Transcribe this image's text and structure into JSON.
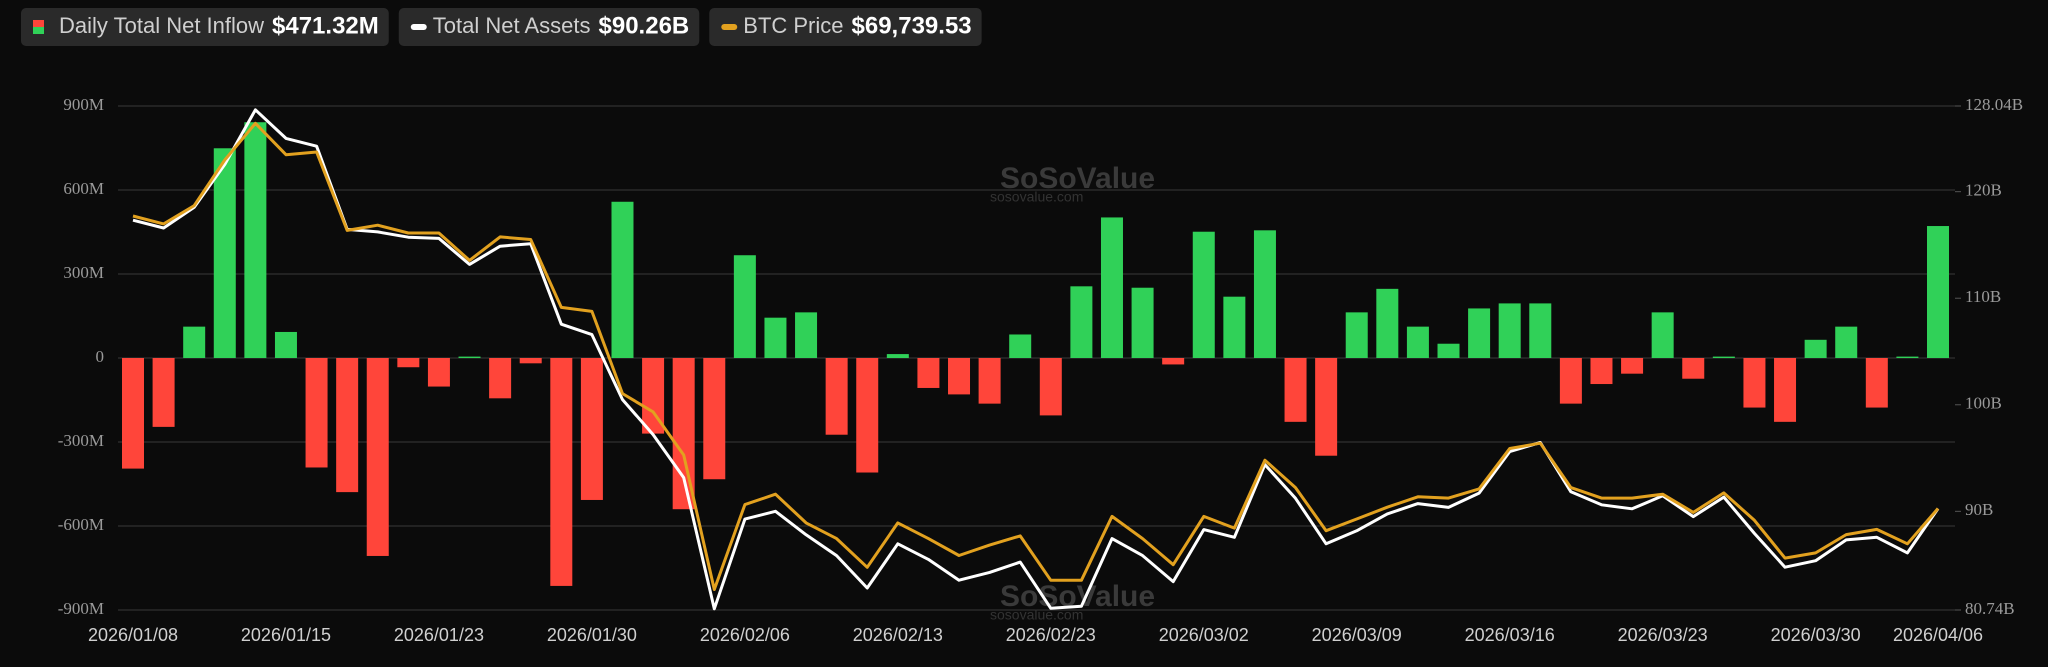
{
  "chart_data": {
    "type": "combo",
    "watermark": "SoSoValue",
    "watermark_url": "sosovalue.com",
    "categories": [
      "2026/01/08",
      null,
      null,
      null,
      null,
      "2026/01/15",
      null,
      null,
      null,
      null,
      "2026/01/23",
      null,
      null,
      null,
      null,
      "2026/01/30",
      null,
      null,
      null,
      null,
      "2026/02/06",
      null,
      null,
      null,
      null,
      "2026/02/13",
      null,
      null,
      null,
      null,
      "2026/02/23",
      null,
      null,
      null,
      null,
      "2026/03/02",
      null,
      null,
      null,
      null,
      "2026/03/09",
      null,
      null,
      null,
      null,
      "2026/03/16",
      null,
      null,
      null,
      null,
      "2026/03/23",
      null,
      null,
      null,
      null,
      "2026/03/30",
      null,
      null,
      null,
      "2026/04/06"
    ],
    "ylim": [
      -900,
      900
    ],
    "yticks": [
      {
        "value": -900,
        "label": "-900M"
      },
      {
        "value": -600,
        "label": "-600M"
      },
      {
        "value": -300,
        "label": "-300M"
      },
      0,
      {
        "value": 300,
        "label": "300M"
      },
      {
        "value": 600,
        "label": "600M"
      },
      {
        "value": 900,
        "label": "900M"
      }
    ],
    "y2lim": [
      80.74,
      128.04
    ],
    "y2ticks": [
      {
        "value": 80.74,
        "label": "80.74B"
      },
      {
        "value": 90,
        "label": "90B"
      },
      {
        "value": 100,
        "label": "100B"
      },
      {
        "value": 110,
        "label": "110B"
      },
      {
        "value": 120,
        "label": "120B"
      },
      {
        "value": 128.04,
        "label": "128.04B"
      }
    ],
    "y3lim": [
      62381,
      98926
    ],
    "grid": true,
    "series": [
      {
        "name": "Daily Total Net Inflow",
        "latest_label": "$471.32M",
        "type": "bar",
        "color_positive": "#30d158",
        "color_negative": "#ff453a",
        "values": [
          -395,
          -246,
          112,
          749,
          842,
          93,
          -391,
          -479,
          -707,
          -33,
          -102,
          5,
          -144,
          -19,
          -814,
          -507,
          558,
          -270,
          -540,
          -433,
          367,
          144,
          163,
          -274,
          -409,
          14,
          -107,
          -130,
          -163,
          84,
          -205,
          256,
          502,
          251,
          -23,
          451,
          219,
          456,
          -228,
          -349,
          163,
          247,
          112,
          51,
          177,
          195,
          195,
          -163,
          -93,
          -56,
          163,
          -74,
          5,
          -177,
          -228,
          65,
          112,
          -177,
          5,
          471.32
        ]
      },
      {
        "name": "Total Net Assets",
        "latest_label": "$90.26B",
        "type": "line",
        "axis": "y2",
        "color": "#ffffff",
        "values": [
          117.32,
          116.59,
          118.54,
          122.56,
          127.68,
          125.0,
          124.27,
          116.46,
          116.22,
          115.73,
          115.61,
          113.17,
          114.88,
          115.12,
          107.56,
          106.59,
          100.49,
          97.2,
          93.17,
          80.85,
          89.27,
          90.0,
          87.8,
          85.85,
          82.8,
          86.95,
          85.49,
          83.54,
          84.27,
          85.24,
          80.9,
          81.1,
          87.44,
          85.85,
          83.41,
          88.29,
          87.56,
          94.39,
          91.22,
          86.95,
          88.17,
          89.76,
          90.73,
          90.37,
          91.71,
          95.61,
          96.46,
          91.83,
          90.61,
          90.24,
          91.46,
          89.51,
          91.34,
          87.93,
          84.76,
          85.37,
          87.32,
          87.56,
          86.1,
          90.26
        ]
      },
      {
        "name": "BTC Price",
        "latest_label": "$69,739.53",
        "type": "line",
        "axis": "y3",
        "color": "#e2a11f",
        "values": [
          90947,
          90379,
          91705,
          95019,
          97670,
          95397,
          95587,
          89906,
          90285,
          89716,
          89716,
          87728,
          89432,
          89243,
          84320,
          84036,
          78071,
          76745,
          73621,
          63869,
          70023,
          70780,
          68698,
          67561,
          65478,
          68698,
          67561,
          66331,
          67088,
          67751,
          64532,
          64532,
          69171,
          67561,
          65668,
          69171,
          68319,
          73242,
          71254,
          68129,
          68982,
          69834,
          70591,
          70496,
          71159,
          74094,
          74473,
          71254,
          70496,
          70496,
          70780,
          69455,
          70875,
          68887,
          66141,
          66520,
          67845,
          68224,
          67183,
          69739.53
        ]
      }
    ]
  }
}
